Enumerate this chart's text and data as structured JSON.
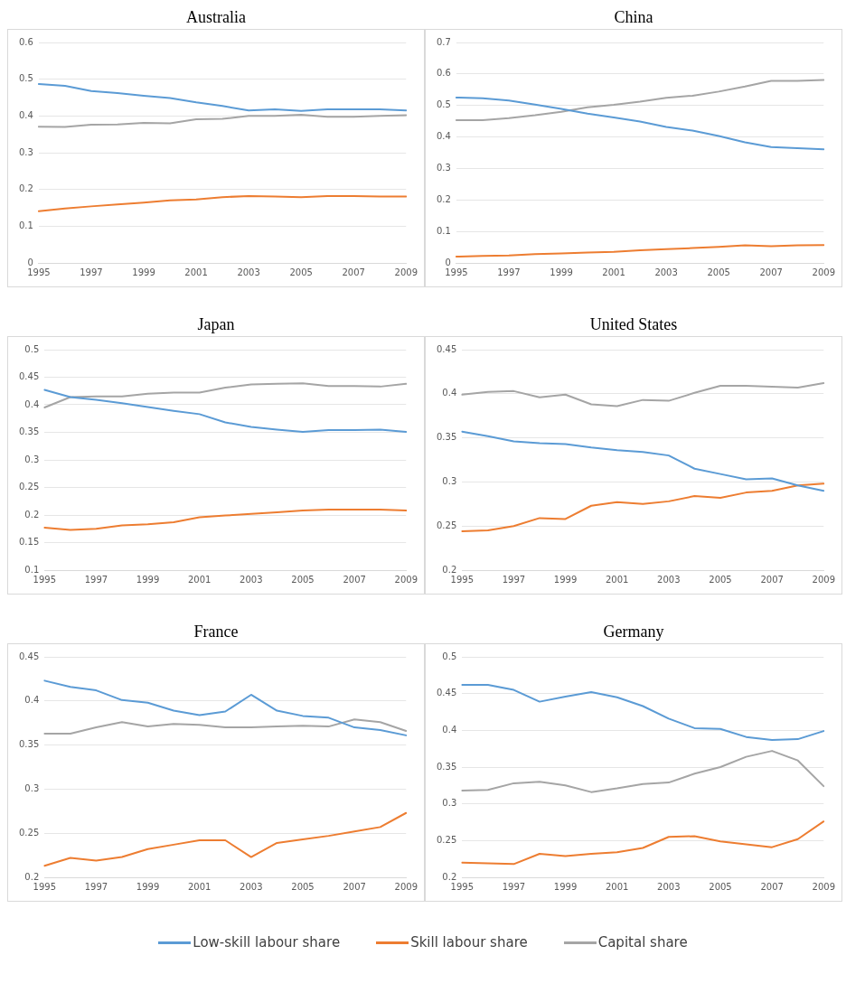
{
  "chart_data": [
    {
      "type": "line",
      "title": "Australia",
      "categories": [
        "1995",
        null,
        "1997",
        null,
        "1999",
        null,
        "2001",
        null,
        "2003",
        null,
        "2005",
        null,
        "2007",
        null,
        "2009"
      ],
      "ylim": [
        0,
        0.6
      ],
      "yticks": [
        0,
        0.1,
        0.2,
        0.3,
        0.4,
        0.5,
        0.6
      ],
      "grid": "y",
      "marker": "none",
      "series": [
        {
          "color": "#5b9bd5",
          "values": [
            0.487,
            0.482,
            0.468,
            0.462,
            0.455,
            0.449,
            0.437,
            0.427,
            0.415,
            0.418,
            0.414,
            0.418,
            0.418,
            0.418,
            0.415
          ]
        },
        {
          "color": "#ed7d31",
          "values": [
            0.141,
            0.148,
            0.154,
            0.159,
            0.164,
            0.17,
            0.173,
            0.179,
            0.182,
            0.181,
            0.179,
            0.182,
            0.182,
            0.181,
            0.181
          ]
        },
        {
          "color": "#a5a5a5",
          "values": [
            0.371,
            0.37,
            0.376,
            0.377,
            0.381,
            0.38,
            0.391,
            0.392,
            0.4,
            0.4,
            0.403,
            0.398,
            0.398,
            0.4,
            0.402
          ]
        }
      ]
    },
    {
      "type": "line",
      "title": "China",
      "categories": [
        "1995",
        null,
        "1997",
        null,
        "1999",
        null,
        "2001",
        null,
        "2003",
        null,
        "2005",
        null,
        "2007",
        null,
        "2009"
      ],
      "ylim": [
        0,
        0.7
      ],
      "yticks": [
        0,
        0.1,
        0.2,
        0.3,
        0.4,
        0.5,
        0.6,
        0.7
      ],
      "grid": "y",
      "marker": "none",
      "series": [
        {
          "color": "#5b9bd5",
          "values": [
            0.525,
            0.523,
            0.516,
            0.503,
            0.489,
            0.474,
            0.462,
            0.449,
            0.432,
            0.42,
            0.403,
            0.383,
            0.368,
            0.364,
            0.361
          ]
        },
        {
          "color": "#ed7d31",
          "values": [
            0.02,
            0.022,
            0.024,
            0.028,
            0.03,
            0.033,
            0.035,
            0.04,
            0.044,
            0.047,
            0.051,
            0.056,
            0.053,
            0.056,
            0.057
          ]
        },
        {
          "color": "#a5a5a5",
          "values": [
            0.453,
            0.453,
            0.46,
            0.469,
            0.48,
            0.494,
            0.502,
            0.512,
            0.524,
            0.531,
            0.544,
            0.56,
            0.578,
            0.578,
            0.581
          ]
        }
      ]
    },
    {
      "type": "line",
      "title": "Japan",
      "categories": [
        "1995",
        null,
        "1997",
        null,
        "1999",
        null,
        "2001",
        null,
        "2003",
        null,
        "2005",
        null,
        "2007",
        null,
        "2009"
      ],
      "ylim": [
        0.1,
        0.5
      ],
      "yticks": [
        0.1,
        0.15,
        0.2,
        0.25,
        0.3,
        0.35,
        0.4,
        0.45,
        0.5
      ],
      "grid": "y",
      "marker": "none",
      "series": [
        {
          "color": "#5b9bd5",
          "values": [
            0.427,
            0.414,
            0.409,
            0.403,
            0.396,
            0.389,
            0.383,
            0.368,
            0.36,
            0.355,
            0.351,
            0.354,
            0.354,
            0.355,
            0.351
          ]
        },
        {
          "color": "#ed7d31",
          "values": [
            0.177,
            0.173,
            0.175,
            0.181,
            0.183,
            0.187,
            0.196,
            0.199,
            0.202,
            0.205,
            0.208,
            0.21,
            0.21,
            0.21,
            0.208
          ]
        },
        {
          "color": "#a5a5a5",
          "values": [
            0.395,
            0.414,
            0.415,
            0.415,
            0.42,
            0.422,
            0.422,
            0.431,
            0.437,
            0.438,
            0.439,
            0.434,
            0.434,
            0.433,
            0.438
          ]
        }
      ]
    },
    {
      "type": "line",
      "title": "United States",
      "categories": [
        "1995",
        null,
        "1997",
        null,
        "1999",
        null,
        "2001",
        null,
        "2003",
        null,
        "2005",
        null,
        "2007",
        null,
        "2009"
      ],
      "ylim": [
        0.2,
        0.45
      ],
      "yticks": [
        0.2,
        0.25,
        0.3,
        0.35,
        0.4,
        0.45
      ],
      "grid": "y",
      "marker": "none",
      "series": [
        {
          "color": "#5b9bd5",
          "values": [
            0.357,
            0.352,
            0.346,
            0.344,
            0.343,
            0.339,
            0.336,
            0.334,
            0.33,
            0.315,
            0.309,
            0.303,
            0.304,
            0.296,
            0.29
          ]
        },
        {
          "color": "#ed7d31",
          "values": [
            0.244,
            0.245,
            0.25,
            0.259,
            0.258,
            0.273,
            0.277,
            0.275,
            0.278,
            0.284,
            0.282,
            0.288,
            0.29,
            0.296,
            0.298
          ]
        },
        {
          "color": "#a5a5a5",
          "values": [
            0.399,
            0.402,
            0.403,
            0.396,
            0.399,
            0.388,
            0.386,
            0.393,
            0.392,
            0.401,
            0.409,
            0.409,
            0.408,
            0.407,
            0.412
          ]
        }
      ]
    },
    {
      "type": "line",
      "title": "France",
      "categories": [
        "1995",
        null,
        "1997",
        null,
        "1999",
        null,
        "2001",
        null,
        "2003",
        null,
        "2005",
        null,
        "2007",
        null,
        "2009"
      ],
      "ylim": [
        0.2,
        0.45
      ],
      "yticks": [
        0.2,
        0.25,
        0.3,
        0.35,
        0.4,
        0.45
      ],
      "grid": "y",
      "marker": "none",
      "series": [
        {
          "color": "#5b9bd5",
          "values": [
            0.423,
            0.416,
            0.412,
            0.401,
            0.398,
            0.389,
            0.384,
            0.388,
            0.407,
            0.389,
            0.383,
            0.381,
            0.37,
            0.367,
            0.361
          ]
        },
        {
          "color": "#ed7d31",
          "values": [
            0.213,
            0.222,
            0.219,
            0.223,
            0.232,
            0.237,
            0.242,
            0.242,
            0.223,
            0.239,
            0.243,
            0.247,
            0.252,
            0.257,
            0.273
          ]
        },
        {
          "color": "#a5a5a5",
          "values": [
            0.363,
            0.363,
            0.37,
            0.376,
            0.371,
            0.374,
            0.373,
            0.37,
            0.37,
            0.371,
            0.372,
            0.371,
            0.379,
            0.376,
            0.366
          ]
        }
      ]
    },
    {
      "type": "line",
      "title": "Germany",
      "categories": [
        "1995",
        null,
        "1997",
        null,
        "1999",
        null,
        "2001",
        null,
        "2003",
        null,
        "2005",
        null,
        "2007",
        null,
        "2009"
      ],
      "ylim": [
        0.2,
        0.5
      ],
      "yticks": [
        0.2,
        0.25,
        0.3,
        0.35,
        0.4,
        0.45,
        0.5
      ],
      "grid": "y",
      "marker": "none",
      "legend": "bottom",
      "series": [
        {
          "name": "Low-skill labour share",
          "color": "#5b9bd5",
          "values": [
            0.462,
            0.462,
            0.455,
            0.439,
            0.446,
            0.452,
            0.445,
            0.433,
            0.416,
            0.403,
            0.402,
            0.391,
            0.387,
            0.388,
            0.399
          ]
        },
        {
          "name": "Skill labour share",
          "color": "#ed7d31",
          "values": [
            0.22,
            0.219,
            0.218,
            0.232,
            0.229,
            0.232,
            0.234,
            0.24,
            0.255,
            0.256,
            0.249,
            0.245,
            0.241,
            0.252,
            0.276
          ]
        },
        {
          "name": "Capital share",
          "color": "#a5a5a5",
          "values": [
            0.318,
            0.319,
            0.328,
            0.33,
            0.325,
            0.316,
            0.321,
            0.327,
            0.329,
            0.341,
            0.35,
            0.364,
            0.372,
            0.359,
            0.324
          ]
        }
      ]
    }
  ]
}
